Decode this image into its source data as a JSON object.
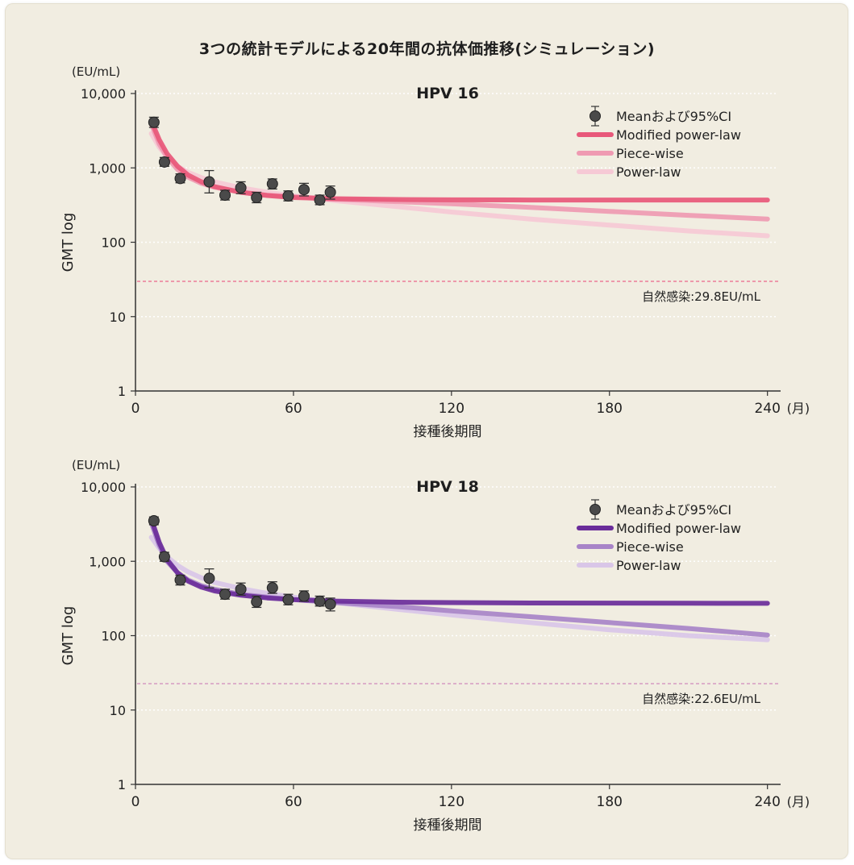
{
  "title": "3つの統計モデルによる20年間の抗体価推移(シミュレーション)",
  "chart_data": [
    {
      "type": "line",
      "title": "HPV 16",
      "xlabel": "接種後期間",
      "x_unit": "(月)",
      "ylabel": "GMT log",
      "y_unit": "(EU/mL)",
      "y_scale": "log",
      "xlim": [
        0,
        245
      ],
      "ylim": [
        1,
        10000
      ],
      "x_ticks": [
        "0",
        "60",
        "120",
        "180",
        "240"
      ],
      "y_ticks": [
        "1",
        "10",
        "100",
        "1,000",
        "10,000"
      ],
      "grid": "horizontal dotted",
      "legend_position": "top-right",
      "legend": [
        "Meanおよび95%CI",
        "Modified power-law",
        "Piece-wise",
        "Power-law"
      ],
      "series": [
        {
          "name": "Modified power-law",
          "color": "#e8587a",
          "x": [
            6,
            9,
            12,
            16,
            20,
            25,
            30,
            40,
            50,
            60,
            75,
            100,
            120,
            150,
            180,
            210,
            240
          ],
          "y": [
            4300,
            2400,
            1550,
            1050,
            800,
            650,
            560,
            470,
            425,
            400,
            385,
            375,
            372,
            370,
            370,
            370,
            370
          ]
        },
        {
          "name": "Piece-wise",
          "color": "#ef9ab2",
          "x": [
            6,
            9,
            12,
            16,
            20,
            25,
            30,
            40,
            50,
            60,
            75,
            100,
            120,
            150,
            180,
            210,
            240
          ],
          "y": [
            3900,
            2100,
            1400,
            950,
            750,
            620,
            550,
            470,
            430,
            410,
            380,
            350,
            330,
            295,
            260,
            230,
            205
          ]
        },
        {
          "name": "Power-law",
          "color": "#f6c9d5",
          "x": [
            6,
            9,
            12,
            16,
            20,
            25,
            30,
            40,
            50,
            60,
            75,
            100,
            120,
            150,
            180,
            210,
            240
          ],
          "y": [
            2900,
            1900,
            1400,
            1050,
            870,
            740,
            650,
            540,
            470,
            420,
            365,
            300,
            255,
            205,
            170,
            142,
            122
          ]
        }
      ],
      "points": {
        "name": "Meanおよび95%CI",
        "color": "#4a4a4a",
        "x": [
          7,
          11,
          17,
          28,
          34,
          40,
          46,
          52,
          58,
          64,
          70,
          74
        ],
        "y": [
          4100,
          1200,
          720,
          650,
          430,
          540,
          400,
          610,
          420,
          510,
          370,
          470
        ],
        "ci_low": [
          3500,
          1050,
          630,
          460,
          370,
          450,
          340,
          520,
          360,
          420,
          320,
          380
        ],
        "ci_high": [
          4800,
          1380,
          830,
          920,
          500,
          650,
          470,
          710,
          490,
          620,
          430,
          570
        ]
      },
      "reference_line": {
        "value": 29.8,
        "label": "自然感染:29.8EU/mL",
        "color": "#ec7d99"
      }
    },
    {
      "type": "line",
      "title": "HPV 18",
      "xlabel": "接種後期間",
      "x_unit": "(月)",
      "ylabel": "GMT log",
      "y_unit": "(EU/mL)",
      "y_scale": "log",
      "xlim": [
        0,
        245
      ],
      "ylim": [
        1,
        10000
      ],
      "x_ticks": [
        "0",
        "60",
        "120",
        "180",
        "240"
      ],
      "y_ticks": [
        "1",
        "10",
        "100",
        "1,000",
        "10,000"
      ],
      "grid": "horizontal dotted",
      "legend_position": "top-right",
      "legend": [
        "Meanおよび95%CI",
        "Modified power-law",
        "Piece-wise",
        "Power-law"
      ],
      "series": [
        {
          "name": "Modified power-law",
          "color": "#6a2c9a",
          "x": [
            6,
            9,
            12,
            16,
            20,
            25,
            30,
            40,
            50,
            60,
            75,
            100,
            120,
            150,
            180,
            210,
            240
          ],
          "y": [
            3700,
            1800,
            1050,
            700,
            540,
            450,
            400,
            350,
            322,
            305,
            292,
            282,
            278,
            275,
            274,
            273,
            272
          ]
        },
        {
          "name": "Piece-wise",
          "color": "#a884c8",
          "x": [
            6,
            9,
            12,
            16,
            20,
            25,
            30,
            40,
            50,
            60,
            75,
            100,
            120,
            150,
            180,
            210,
            240
          ],
          "y": [
            3300,
            1650,
            1000,
            700,
            560,
            470,
            420,
            360,
            330,
            305,
            280,
            245,
            215,
            180,
            150,
            125,
            102
          ]
        },
        {
          "name": "Power-law",
          "color": "#d9c6e8",
          "x": [
            6,
            9,
            12,
            16,
            20,
            25,
            30,
            40,
            50,
            60,
            75,
            100,
            120,
            150,
            180,
            210,
            240
          ],
          "y": [
            2100,
            1500,
            1150,
            880,
            720,
            600,
            520,
            430,
            370,
            330,
            280,
            225,
            190,
            150,
            120,
            100,
            88
          ]
        }
      ],
      "points": {
        "name": "Meanおよび95%CI",
        "color": "#4a4a4a",
        "x": [
          7,
          11,
          17,
          28,
          34,
          40,
          46,
          52,
          58,
          64,
          70,
          74
        ],
        "y": [
          3500,
          1150,
          560,
          590,
          360,
          420,
          285,
          440,
          305,
          340,
          290,
          265
        ],
        "ci_low": [
          3100,
          1000,
          480,
          440,
          310,
          350,
          240,
          370,
          260,
          290,
          250,
          215
        ],
        "ci_high": [
          3950,
          1320,
          650,
          790,
          420,
          510,
          340,
          530,
          360,
          400,
          340,
          320
        ]
      },
      "reference_line": {
        "value": 22.6,
        "label": "自然感染:22.6EU/mL",
        "color": "#d7a1c5"
      }
    }
  ]
}
